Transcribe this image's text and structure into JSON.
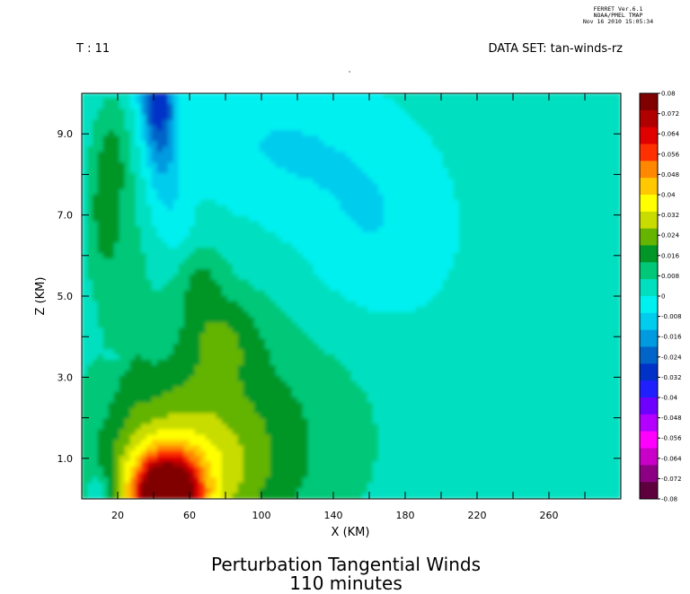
{
  "program_stamp": {
    "line1": "FERRET  Ver.6.1",
    "line2": "NOAA/PMEL TMAP",
    "line3": "Nov 16 2010 15:05:34"
  },
  "header": {
    "time_label": "T : 11",
    "dataset_label": "DATA SET: tan-winds-rz"
  },
  "title": {
    "line1": "Perturbation Tangential Winds",
    "line2": "110 minutes"
  },
  "colors": {
    "levels": [
      -0.08,
      -0.072,
      -0.064,
      -0.056,
      -0.048,
      -0.04,
      -0.032,
      -0.024,
      -0.016,
      -0.008,
      0,
      0.008,
      0.016,
      0.024,
      0.032,
      0.04,
      0.048,
      0.056,
      0.064,
      0.072,
      0.08
    ],
    "palette": [
      "#5e003e",
      "#8c0084",
      "#c800c8",
      "#ff00ff",
      "#b400ff",
      "#6e00ff",
      "#2020ff",
      "#0032c8",
      "#0064c8",
      "#009ae0",
      "#00ccee",
      "#00f0f0",
      "#00e0c0",
      "#00c878",
      "#009628",
      "#64b400",
      "#c8dc00",
      "#ffff00",
      "#ffc800",
      "#ff8800",
      "#ff3000",
      "#e00000",
      "#b00000",
      "#800000"
    ]
  },
  "chart_data": {
    "type": "heatmap",
    "title": "Perturbation Tangential Winds",
    "subtitle": "110 minutes",
    "xlabel": "X (KM)",
    "ylabel": "Z (KM)",
    "xlim": [
      0,
      300
    ],
    "ylim": [
      0,
      10
    ],
    "x_ticks": [
      "20",
      "60",
      "100",
      "140",
      "180",
      "220",
      "260"
    ],
    "x_tick_values": [
      20,
      60,
      100,
      140,
      180,
      220,
      260
    ],
    "y_ticks": [
      "1.0",
      "3.0",
      "5.0",
      "7.0",
      "9.0"
    ],
    "y_tick_values": [
      1,
      3,
      5,
      7,
      9
    ],
    "colorbar_labels": [
      "0.08",
      "0.072",
      "0.064",
      "0.056",
      "0.048",
      "0.04",
      "0.032",
      "0.024",
      "0.016",
      "0.008",
      "0",
      "-0.008",
      "-0.016",
      "-0.024",
      "-0.032",
      "-0.04",
      "-0.048",
      "-0.056",
      "-0.064",
      "-0.072",
      "-0.08"
    ],
    "colorbar_range": [
      -0.08,
      0.08
    ],
    "features": [
      {
        "x": 45,
        "z": 0.2,
        "value": 0.08
      },
      {
        "x": 42,
        "z": 9.6,
        "value": -0.022
      },
      {
        "x": 170,
        "z": 6.5,
        "value": -0.005
      },
      {
        "x": 10,
        "z": 0.3,
        "value": -0.01
      },
      {
        "x": 20,
        "z": 3.5,
        "value": -0.003
      },
      {
        "x": 15,
        "z": 7.0,
        "value": 0.012
      }
    ]
  }
}
